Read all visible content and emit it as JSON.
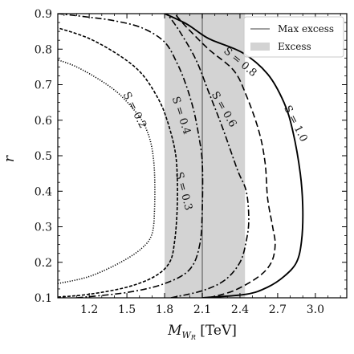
{
  "chart_data": {
    "type": "line",
    "title": "",
    "xlabel": "M",
    "xlabel_sub": "W",
    "xlabel_subsub": "R",
    "xlabel_unit": " [TeV]",
    "ylabel": "r",
    "xlim": [
      0.95,
      3.25
    ],
    "ylim": [
      0.1,
      0.9
    ],
    "xticks": [
      1.2,
      1.5,
      1.8,
      2.1,
      2.4,
      2.7,
      3.0
    ],
    "xtick_labels": [
      "1.2",
      "1.5",
      "1.8",
      "2.1",
      "2.4",
      "2.7",
      "3.0"
    ],
    "yticks": [
      0.1,
      0.2,
      0.3,
      0.4,
      0.5,
      0.6,
      0.7,
      0.8,
      0.9
    ],
    "ytick_labels": [
      "0.1",
      "0.2",
      "0.3",
      "0.4",
      "0.5",
      "0.6",
      "0.7",
      "0.8",
      "0.9"
    ],
    "grid": false,
    "legend_position": "top-right",
    "legend": [
      {
        "label": "Max excess",
        "kind": "line",
        "color": "#808080"
      },
      {
        "label": "Excess",
        "kind": "band",
        "color": "#d3d3d3"
      }
    ],
    "excess_band": [
      1.8,
      2.44
    ],
    "max_excess": 2.1,
    "contours": [
      {
        "name": "S = 0.2",
        "label": "S = 0.2",
        "dash": "dotted",
        "label_at": [
          1.56,
          0.628
        ],
        "label_angle": 63,
        "points": [
          [
            0.95,
            0.14
          ],
          [
            1.2,
            0.16
          ],
          [
            1.45,
            0.2
          ],
          [
            1.62,
            0.24
          ],
          [
            1.7,
            0.28
          ],
          [
            1.72,
            0.35
          ],
          [
            1.72,
            0.45
          ],
          [
            1.7,
            0.52
          ],
          [
            1.66,
            0.57
          ],
          [
            1.6,
            0.61
          ],
          [
            1.45,
            0.67
          ],
          [
            1.3,
            0.71
          ],
          [
            1.1,
            0.75
          ],
          [
            0.95,
            0.77
          ]
        ]
      },
      {
        "name": "S = 0.3",
        "label": "S = 0.3",
        "dash": "densedash",
        "label_at": [
          1.95,
          0.4
        ],
        "label_angle": 75,
        "points": [
          [
            0.95,
            0.102
          ],
          [
            1.2,
            0.11
          ],
          [
            1.5,
            0.13
          ],
          [
            1.72,
            0.16
          ],
          [
            1.84,
            0.2
          ],
          [
            1.88,
            0.26
          ],
          [
            1.9,
            0.35
          ],
          [
            1.9,
            0.45
          ],
          [
            1.88,
            0.52
          ],
          [
            1.82,
            0.6
          ],
          [
            1.75,
            0.66
          ],
          [
            1.62,
            0.73
          ],
          [
            1.45,
            0.78
          ],
          [
            1.2,
            0.83
          ],
          [
            0.95,
            0.86
          ]
        ]
      },
      {
        "name": "S = 0.4",
        "label": "S = 0.4",
        "dash": "dashdot",
        "label_at": [
          1.93,
          0.613
        ],
        "label_angle": 72,
        "points": [
          [
            1.1,
            0.1
          ],
          [
            1.5,
            0.115
          ],
          [
            1.8,
            0.14
          ],
          [
            2.0,
            0.18
          ],
          [
            2.08,
            0.25
          ],
          [
            2.1,
            0.35
          ],
          [
            2.1,
            0.48
          ],
          [
            2.07,
            0.56
          ],
          [
            2.03,
            0.63
          ],
          [
            1.97,
            0.7
          ],
          [
            1.9,
            0.76
          ],
          [
            1.8,
            0.82
          ],
          [
            1.62,
            0.86
          ],
          [
            1.4,
            0.88
          ],
          [
            1.2,
            0.89
          ],
          [
            0.95,
            0.9
          ]
        ]
      },
      {
        "name": "S = 0.6",
        "label": "S = 0.6",
        "dash": "dashdot",
        "label_at": [
          2.27,
          0.63
        ],
        "label_angle": 60,
        "points": [
          [
            1.85,
            0.1
          ],
          [
            2.1,
            0.12
          ],
          [
            2.28,
            0.15
          ],
          [
            2.4,
            0.2
          ],
          [
            2.45,
            0.26
          ],
          [
            2.47,
            0.32
          ],
          [
            2.45,
            0.4
          ],
          [
            2.38,
            0.46
          ],
          [
            2.26,
            0.58
          ],
          [
            2.15,
            0.68
          ],
          [
            2.05,
            0.77
          ],
          [
            1.92,
            0.85
          ],
          [
            1.82,
            0.9
          ]
        ]
      },
      {
        "name": "S = 0.8",
        "label": "S = 0.8",
        "dash": "dashed",
        "label_at": [
          2.4,
          0.763
        ],
        "label_angle": 40,
        "points": [
          [
            2.15,
            0.1
          ],
          [
            2.35,
            0.12
          ],
          [
            2.55,
            0.16
          ],
          [
            2.65,
            0.2
          ],
          [
            2.68,
            0.25
          ],
          [
            2.66,
            0.3
          ],
          [
            2.62,
            0.38
          ],
          [
            2.6,
            0.48
          ],
          [
            2.55,
            0.57
          ],
          [
            2.45,
            0.67
          ],
          [
            2.35,
            0.74
          ],
          [
            2.15,
            0.8
          ],
          [
            1.98,
            0.86
          ],
          [
            1.88,
            0.9
          ]
        ]
      },
      {
        "name": "S = 1.0",
        "label": "S = 1.0",
        "dash": "solid",
        "label_at": [
          2.84,
          0.59
        ],
        "label_angle": 63,
        "points": [
          [
            2.1,
            0.1
          ],
          [
            2.45,
            0.11
          ],
          [
            2.62,
            0.13
          ],
          [
            2.75,
            0.16
          ],
          [
            2.85,
            0.2
          ],
          [
            2.89,
            0.26
          ],
          [
            2.9,
            0.35
          ],
          [
            2.88,
            0.45
          ],
          [
            2.82,
            0.57
          ],
          [
            2.75,
            0.65
          ],
          [
            2.62,
            0.73
          ],
          [
            2.42,
            0.79
          ],
          [
            2.15,
            0.83
          ],
          [
            1.98,
            0.87
          ],
          [
            1.8,
            0.9
          ]
        ]
      }
    ]
  }
}
